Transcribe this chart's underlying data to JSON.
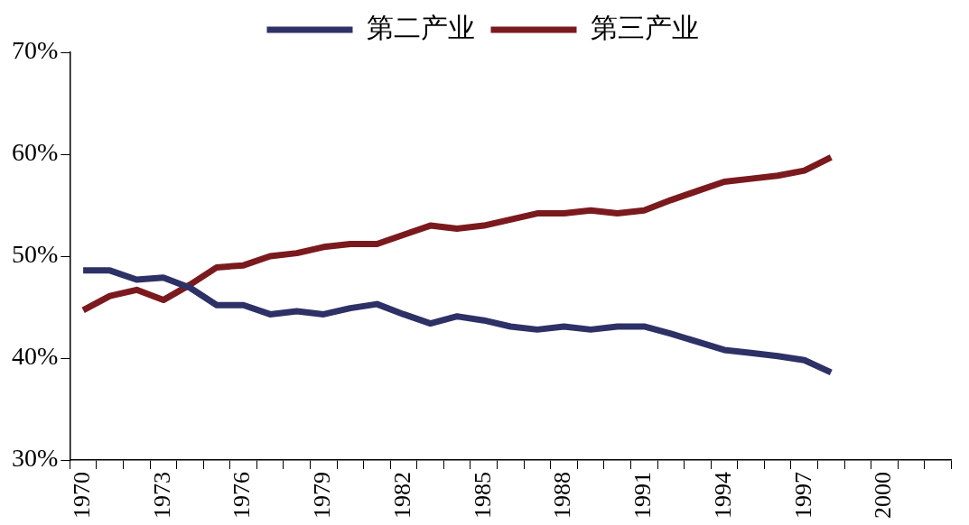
{
  "chart_data": {
    "type": "line",
    "categories": [
      "1970",
      null,
      null,
      "1973",
      null,
      null,
      "1976",
      null,
      null,
      "1979",
      null,
      null,
      "1982",
      null,
      null,
      "1985",
      null,
      null,
      "1988",
      null,
      null,
      "1991",
      null,
      null,
      "1994",
      null,
      null,
      "1997",
      null,
      null,
      "2000",
      null,
      null
    ],
    "series": [
      {
        "name": "第二产业",
        "color": "#2e3166",
        "values": [
          48.6,
          48.6,
          47.7,
          47.9,
          46.9,
          45.2,
          45.2,
          44.3,
          44.6,
          44.3,
          44.9,
          45.3,
          44.3,
          43.4,
          44.1,
          43.7,
          43.1,
          42.8,
          43.1,
          42.8,
          43.1,
          43.1,
          42.4,
          41.6,
          40.8,
          40.5,
          40.2,
          39.8,
          38.6,
          null,
          null,
          null,
          null
        ]
      },
      {
        "name": "第三产业",
        "color": "#7b1a1e",
        "values": [
          44.7,
          46.1,
          46.7,
          45.7,
          47.2,
          48.9,
          49.1,
          50.0,
          50.3,
          50.9,
          51.2,
          51.2,
          52.1,
          53.0,
          52.7,
          53.0,
          53.6,
          54.2,
          54.2,
          54.5,
          54.2,
          54.5,
          55.5,
          56.4,
          57.3,
          57.6,
          57.9,
          58.4,
          59.7,
          null,
          null,
          null,
          null
        ]
      }
    ],
    "ylim": [
      30,
      70
    ],
    "yticks": [
      {
        "value": 30,
        "label": "30%"
      },
      {
        "value": 40,
        "label": "40%"
      },
      {
        "value": 50,
        "label": "50%"
      },
      {
        "value": 60,
        "label": "60%"
      },
      {
        "value": 70,
        "label": "70%"
      }
    ],
    "grid": false,
    "legend": "top",
    "marker": "none",
    "line_style": "solid"
  }
}
